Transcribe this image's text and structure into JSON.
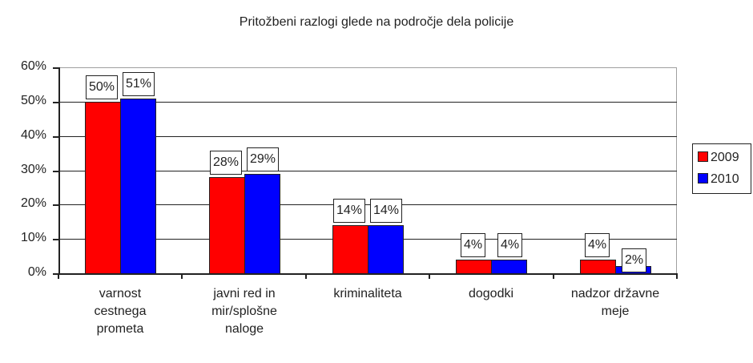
{
  "chart_data": {
    "type": "bar",
    "title": "Pritožbeni razlogi glede na področje dela policije",
    "xlabel": "",
    "ylabel": "",
    "ylim": [
      0,
      60
    ],
    "yticks": [
      "0%",
      "10%",
      "20%",
      "30%",
      "40%",
      "50%",
      "60%"
    ],
    "grid": true,
    "legend_position": "right",
    "categories": [
      "varnost cestnega prometa",
      "javni red in mir/splošne naloge",
      "kriminaliteta",
      "dogodki",
      "nadzor državne meje"
    ],
    "category_lines": [
      [
        "varnost",
        "cestnega",
        "prometa"
      ],
      [
        "javni red in",
        "mir/splošne",
        "naloge"
      ],
      [
        "kriminaliteta"
      ],
      [
        "dogodki"
      ],
      [
        "nadzor državne",
        "meje"
      ]
    ],
    "series": [
      {
        "name": "2009",
        "color": "#ff0000",
        "values": [
          50,
          28,
          14,
          4,
          4
        ],
        "labels": [
          "50%",
          "28%",
          "14%",
          "4%",
          "4%"
        ]
      },
      {
        "name": "2010",
        "color": "#0000ff",
        "values": [
          51,
          29,
          14,
          4,
          2
        ],
        "labels": [
          "51%",
          "29%",
          "14%",
          "4%",
          "2%"
        ]
      }
    ]
  }
}
